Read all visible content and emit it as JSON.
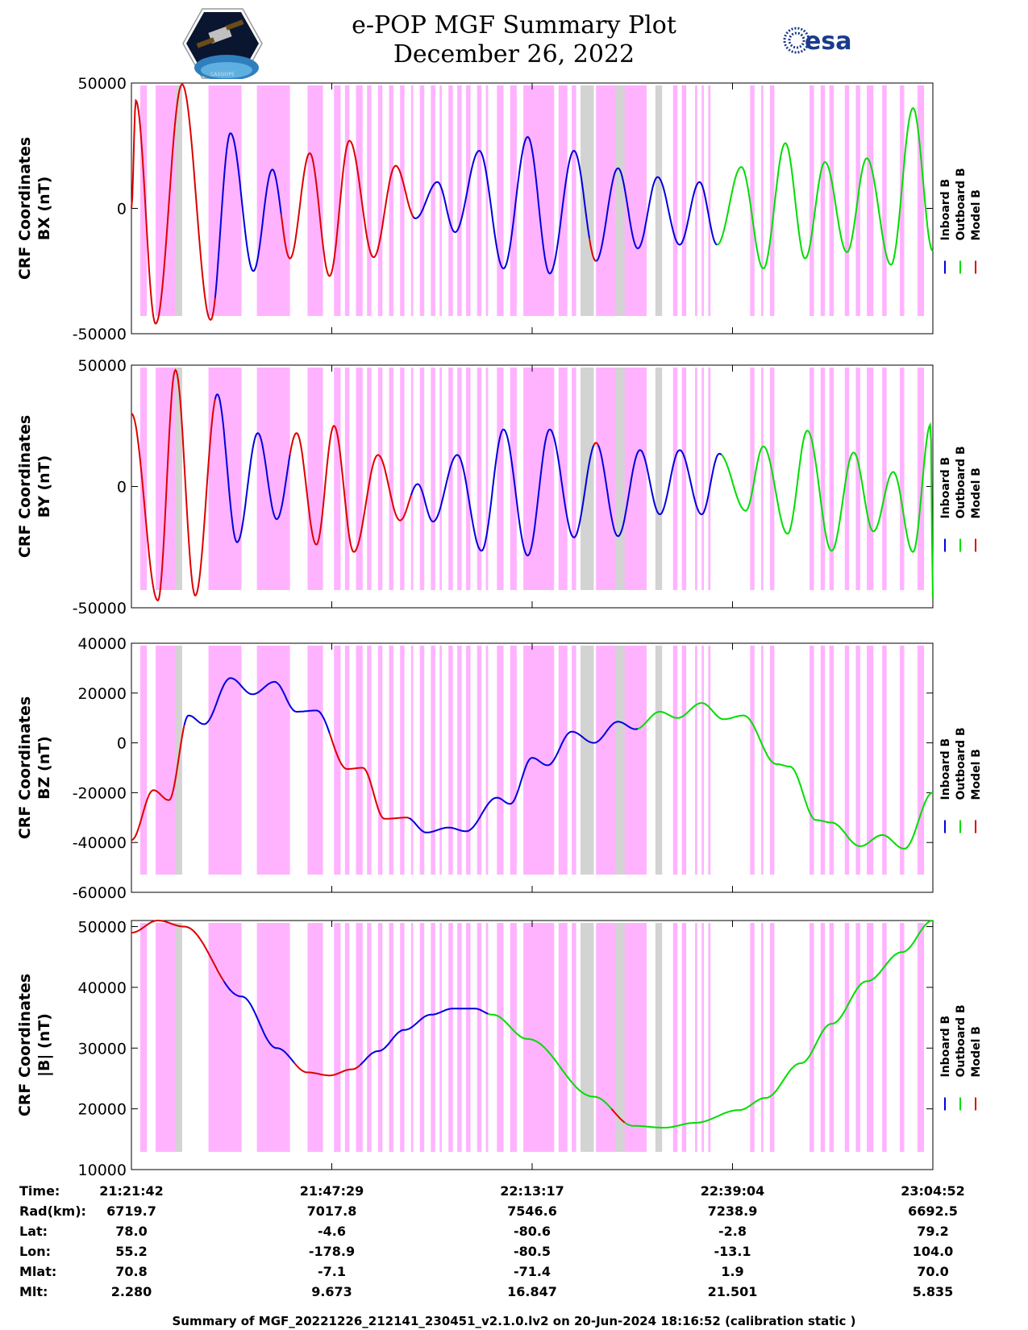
{
  "header": {
    "title": "e-POP MGF Summary Plot",
    "date": "December 26, 2022",
    "logo_left_text": "CASSIOPE",
    "logo_right_text": "esa"
  },
  "colors": {
    "inboard": "#0000dd",
    "outboard": "#00dd00",
    "model": "#dd0000",
    "highlight_magenta": "#ffb3ff",
    "highlight_gray": "#d3d3d3"
  },
  "chart_data": [
    {
      "type": "line",
      "ylabel_line1": "CRF Coordinates",
      "ylabel_line2": "BX (nT)",
      "ylim": [
        -50000,
        50000
      ],
      "yticks": [
        "50000",
        "0",
        "-50000"
      ],
      "ytick_values": [
        50000,
        0,
        -50000
      ],
      "legend": [
        "Inboard B",
        "Outboard B",
        "Model B"
      ],
      "points": [
        [
          0,
          0
        ],
        [
          0.1,
          43000
        ],
        [
          0.55,
          -46000
        ],
        [
          1.15,
          49500
        ],
        [
          1.8,
          -44500
        ],
        [
          2.25,
          30000
        ],
        [
          2.77,
          -25000
        ],
        [
          3.2,
          15500
        ],
        [
          3.6,
          -20000
        ],
        [
          4.05,
          22000
        ],
        [
          4.5,
          -27000
        ],
        [
          4.95,
          27000
        ],
        [
          5.5,
          -19500
        ],
        [
          6.0,
          17000
        ],
        [
          6.45,
          -4000
        ],
        [
          6.95,
          10500
        ],
        [
          7.35,
          -9500
        ],
        [
          7.9,
          23000
        ],
        [
          8.45,
          -24000
        ],
        [
          9.0,
          28500
        ],
        [
          9.5,
          -26000
        ],
        [
          10.05,
          23000
        ],
        [
          10.55,
          -21000
        ],
        [
          11.05,
          16000
        ],
        [
          11.5,
          -16000
        ],
        [
          11.95,
          12500
        ],
        [
          12.45,
          -14500
        ],
        [
          12.9,
          10500
        ],
        [
          13.3,
          -14500
        ],
        [
          13.85,
          16500
        ],
        [
          14.35,
          -24000
        ],
        [
          14.85,
          26000
        ],
        [
          15.3,
          -20000
        ],
        [
          15.75,
          18500
        ],
        [
          16.25,
          -17500
        ],
        [
          16.7,
          20000
        ],
        [
          17.25,
          -22500
        ],
        [
          17.75,
          40000
        ],
        [
          18.2,
          -17000
        ]
      ],
      "segments": [
        [
          "model",
          0,
          1.9
        ],
        [
          "inboard",
          1.9,
          3.4
        ],
        [
          "model",
          3.4,
          6.4
        ],
        [
          "inboard",
          6.4,
          10.4
        ],
        [
          "model",
          10.4,
          10.55
        ],
        [
          "inboard",
          10.55,
          13.3
        ],
        [
          "outboard",
          13.3,
          18.2
        ]
      ]
    },
    {
      "type": "line",
      "ylabel_line1": "CRF Coordinates",
      "ylabel_line2": "BY (nT)",
      "ylim": [
        -50000,
        50000
      ],
      "yticks": [
        "50000",
        "0",
        "-50000"
      ],
      "ytick_values": [
        50000,
        0,
        -50000
      ],
      "legend": [
        "Inboard B",
        "Outboard B",
        "Model B"
      ],
      "points": [
        [
          0,
          30000
        ],
        [
          0.6,
          -47000
        ],
        [
          1.0,
          48000
        ],
        [
          1.45,
          -45000
        ],
        [
          1.95,
          38000
        ],
        [
          2.4,
          -23000
        ],
        [
          2.87,
          22000
        ],
        [
          3.3,
          -13500
        ],
        [
          3.75,
          22000
        ],
        [
          4.2,
          -24000
        ],
        [
          4.6,
          25000
        ],
        [
          5.05,
          -27000
        ],
        [
          5.6,
          13000
        ],
        [
          6.1,
          -14000
        ],
        [
          6.5,
          1000
        ],
        [
          6.85,
          -14500
        ],
        [
          7.4,
          13000
        ],
        [
          7.95,
          -26500
        ],
        [
          8.45,
          23500
        ],
        [
          9.0,
          -28500
        ],
        [
          9.5,
          23500
        ],
        [
          10.05,
          -21000
        ],
        [
          10.55,
          18000
        ],
        [
          11.05,
          -20500
        ],
        [
          11.55,
          15000
        ],
        [
          12.0,
          -11500
        ],
        [
          12.45,
          15000
        ],
        [
          12.95,
          -11500
        ],
        [
          13.35,
          13500
        ],
        [
          13.95,
          -10000
        ],
        [
          14.35,
          16500
        ],
        [
          14.9,
          -19500
        ],
        [
          15.35,
          23000
        ],
        [
          15.9,
          -26500
        ],
        [
          16.4,
          14000
        ],
        [
          16.85,
          -18500
        ],
        [
          17.3,
          6000
        ],
        [
          17.75,
          -27000
        ],
        [
          18.15,
          25500
        ],
        [
          18.2,
          -46000
        ]
      ],
      "segments": [
        [
          "model",
          0,
          1.9
        ],
        [
          "inboard",
          1.9,
          3.6
        ],
        [
          "model",
          3.6,
          6.35
        ],
        [
          "inboard",
          6.35,
          10.5
        ],
        [
          "model",
          10.5,
          10.6
        ],
        [
          "inboard",
          10.6,
          13.4
        ],
        [
          "outboard",
          13.4,
          18.2
        ]
      ]
    },
    {
      "type": "line",
      "ylabel_line1": "CRF Coordinates",
      "ylabel_line2": "BZ (nT)",
      "ylim": [
        -60000,
        40000
      ],
      "yticks": [
        "40000",
        "20000",
        "0",
        "-20000",
        "-40000",
        "-60000"
      ],
      "ytick_values": [
        40000,
        20000,
        0,
        -20000,
        -40000,
        -60000
      ],
      "legend": [
        "Inboard B",
        "Outboard B",
        "Model B"
      ],
      "points": [
        [
          0,
          -39000
        ],
        [
          0.5,
          -19000
        ],
        [
          0.85,
          -23000
        ],
        [
          1.3,
          11000
        ],
        [
          1.65,
          7500
        ],
        [
          2.25,
          26000
        ],
        [
          2.75,
          19500
        ],
        [
          3.25,
          24500
        ],
        [
          3.75,
          12500
        ],
        [
          4.2,
          13000
        ],
        [
          4.9,
          -10500
        ],
        [
          5.25,
          -10000
        ],
        [
          5.75,
          -30500
        ],
        [
          6.25,
          -30000
        ],
        [
          6.7,
          -36000
        ],
        [
          7.2,
          -34000
        ],
        [
          7.6,
          -35500
        ],
        [
          8.3,
          -22000
        ],
        [
          8.6,
          -24500
        ],
        [
          9.1,
          -6000
        ],
        [
          9.45,
          -9000
        ],
        [
          10.0,
          4500
        ],
        [
          10.5,
          0
        ],
        [
          11.05,
          8500
        ],
        [
          11.45,
          5500
        ],
        [
          12.0,
          12500
        ],
        [
          12.4,
          10000
        ],
        [
          12.95,
          16000
        ],
        [
          13.45,
          9500
        ],
        [
          13.9,
          11000
        ],
        [
          14.65,
          -8500
        ],
        [
          14.95,
          -9500
        ],
        [
          15.55,
          -31000
        ],
        [
          15.9,
          -32000
        ],
        [
          16.55,
          -41500
        ],
        [
          17.05,
          -37000
        ],
        [
          17.55,
          -42500
        ],
        [
          18.2,
          -20000
        ]
      ],
      "segments": [
        [
          "model",
          0,
          1.2
        ],
        [
          "inboard",
          1.2,
          4.5
        ],
        [
          "model",
          4.5,
          6.3
        ],
        [
          "inboard",
          6.3,
          11.5
        ],
        [
          "outboard",
          11.5,
          18.2
        ]
      ]
    },
    {
      "type": "line",
      "ylabel_line1": "CRF Coordinates",
      "ylabel_line2": "|B| (nT)",
      "ylim": [
        10000,
        51000
      ],
      "yticks": [
        "50000",
        "40000",
        "30000",
        "20000",
        "10000"
      ],
      "ytick_values": [
        50000,
        40000,
        30000,
        20000,
        10000
      ],
      "legend": [
        "Inboard B",
        "Outboard B",
        "Model B"
      ],
      "points": [
        [
          0,
          49000
        ],
        [
          0.6,
          51000
        ],
        [
          1.2,
          50000
        ],
        [
          2.5,
          38500
        ],
        [
          3.3,
          30000
        ],
        [
          4.0,
          26000
        ],
        [
          4.5,
          25500
        ],
        [
          5.0,
          26500
        ],
        [
          5.6,
          29500
        ],
        [
          6.2,
          33000
        ],
        [
          6.8,
          35500
        ],
        [
          7.3,
          36500
        ],
        [
          7.8,
          36500
        ],
        [
          8.2,
          35500
        ],
        [
          9.0,
          31500
        ],
        [
          10.5,
          22000
        ],
        [
          11.4,
          17200
        ],
        [
          12.1,
          16900
        ],
        [
          12.8,
          17700
        ],
        [
          13.8,
          19800
        ],
        [
          14.4,
          21800
        ],
        [
          15.2,
          27500
        ],
        [
          15.9,
          34000
        ],
        [
          16.7,
          41000
        ],
        [
          17.5,
          45800
        ],
        [
          18.2,
          51000
        ]
      ],
      "segments": [
        [
          "model",
          0,
          2.1
        ],
        [
          "inboard",
          2.1,
          3.7
        ],
        [
          "model",
          3.7,
          5.2
        ],
        [
          "inboard",
          5.2,
          8.1
        ],
        [
          "outboard",
          8.1,
          10.9
        ],
        [
          "model",
          10.9,
          11.2
        ],
        [
          "outboard",
          11.2,
          18.2
        ]
      ]
    }
  ],
  "highlight_bands": {
    "magenta": [
      [
        0.2,
        0.35
      ],
      [
        0.55,
        1.15
      ],
      [
        1.75,
        2.5
      ],
      [
        2.85,
        3.6
      ],
      [
        4.0,
        4.35
      ],
      [
        4.6,
        4.75
      ],
      [
        4.85,
        4.95
      ],
      [
        5.1,
        5.25
      ],
      [
        5.35,
        5.45
      ],
      [
        5.6,
        5.7
      ],
      [
        5.85,
        5.95
      ],
      [
        6.1,
        6.2
      ],
      [
        6.35,
        6.4
      ],
      [
        6.55,
        6.65
      ],
      [
        6.8,
        6.9
      ],
      [
        7.0,
        7.05
      ],
      [
        7.2,
        7.3
      ],
      [
        7.4,
        7.5
      ],
      [
        7.6,
        7.7
      ],
      [
        7.85,
        7.95
      ],
      [
        8.05,
        8.1
      ],
      [
        8.3,
        8.45
      ],
      [
        8.6,
        8.75
      ],
      [
        8.9,
        9.6
      ],
      [
        9.7,
        9.9
      ],
      [
        10.0,
        10.1
      ],
      [
        10.2,
        10.4
      ],
      [
        10.55,
        11.7
      ],
      [
        11.9,
        12.05
      ],
      [
        12.3,
        12.4
      ],
      [
        12.5,
        12.6
      ],
      [
        12.8,
        12.85
      ],
      [
        12.95,
        13.0
      ],
      [
        13.1,
        13.15
      ],
      [
        14.05,
        14.15
      ],
      [
        14.3,
        14.35
      ],
      [
        14.5,
        14.6
      ],
      [
        15.4,
        15.5
      ],
      [
        15.65,
        15.75
      ],
      [
        15.85,
        15.95
      ],
      [
        16.2,
        16.3
      ],
      [
        16.45,
        16.55
      ],
      [
        16.7,
        16.85
      ],
      [
        17.05,
        17.15
      ],
      [
        17.45,
        17.55
      ],
      [
        17.85,
        18.0
      ]
    ],
    "gray": [
      [
        1.0,
        1.15
      ],
      [
        10.2,
        10.5
      ],
      [
        11.0,
        11.2
      ],
      [
        11.9,
        12.05
      ]
    ]
  },
  "x_axis": {
    "range": [
      0,
      18.2
    ],
    "tick_positions": [
      0,
      4.55,
      9.1,
      13.65,
      18.2
    ],
    "row_labels": [
      "Time:",
      "Rad(km):",
      "Lat:",
      "Lon:",
      "Mlat:",
      "Mlt:"
    ],
    "columns": [
      [
        "21:21:42",
        "6719.7",
        "78.0",
        "55.2",
        "70.8",
        "2.280"
      ],
      [
        "21:47:29",
        "7017.8",
        "-4.6",
        "-178.9",
        "-7.1",
        "9.673"
      ],
      [
        "22:13:17",
        "7546.6",
        "-80.6",
        "-80.5",
        "-71.4",
        "16.847"
      ],
      [
        "22:39:04",
        "7238.9",
        "-2.8",
        "-13.1",
        "1.9",
        "21.501"
      ],
      [
        "23:04:52",
        "6692.5",
        "79.2",
        "104.0",
        "70.0",
        "5.835"
      ]
    ]
  },
  "footer": {
    "text": "Summary of MGF_20221226_212141_230451_v2.1.0.lv2 on 20-Jun-2024 18:16:52 (calibration static )"
  }
}
